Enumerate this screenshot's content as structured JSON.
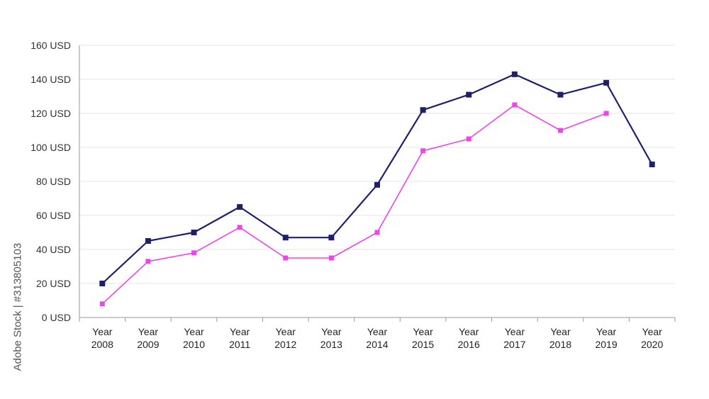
{
  "watermark": {
    "side_text": "Adobe Stock | #313805103",
    "repeat_text": "Adobe Stock"
  },
  "chart_data": {
    "type": "line",
    "title": "",
    "xlabel": "",
    "ylabel": "",
    "y_unit_suffix": " USD",
    "ylim": [
      0,
      160
    ],
    "ytick_step": 20,
    "grid": true,
    "categories": [
      [
        "Year",
        "2008"
      ],
      [
        "Year",
        "2009"
      ],
      [
        "Year",
        "2010"
      ],
      [
        "Year",
        "2011"
      ],
      [
        "Year",
        "2012"
      ],
      [
        "Year",
        "2013"
      ],
      [
        "Year",
        "2014"
      ],
      [
        "Year",
        "2015"
      ],
      [
        "Year",
        "2016"
      ],
      [
        "Year",
        "2017"
      ],
      [
        "Year",
        "2018"
      ],
      [
        "Year",
        "2019"
      ],
      [
        "Year",
        "2020"
      ]
    ],
    "series": [
      {
        "color": "#1f1f6e",
        "values": [
          20,
          45,
          50,
          65,
          47,
          47,
          78,
          122,
          131,
          143,
          131,
          138,
          90
        ]
      },
      {
        "color": "#ee44ee",
        "values": [
          8,
          33,
          38,
          53,
          35,
          35,
          50,
          98,
          105,
          125,
          110,
          120,
          null
        ]
      }
    ]
  }
}
